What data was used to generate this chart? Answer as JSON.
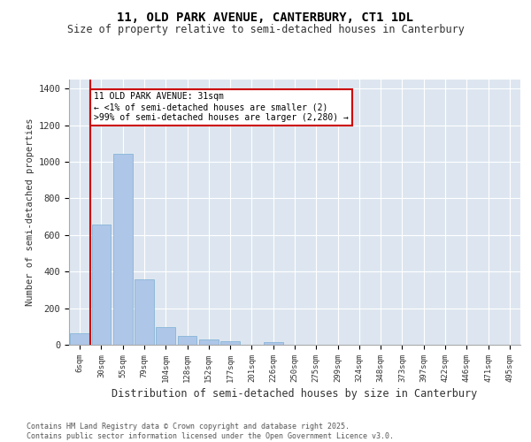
{
  "title": "11, OLD PARK AVENUE, CANTERBURY, CT1 1DL",
  "subtitle": "Size of property relative to semi-detached houses in Canterbury",
  "xlabel": "Distribution of semi-detached houses by size in Canterbury",
  "ylabel": "Number of semi-detached properties",
  "bar_color": "#aec6e8",
  "bar_edge_color": "#7aafd4",
  "background_color": "#dde6f0",
  "grid_color": "#ffffff",
  "vline_color": "#cc0000",
  "annotation_text": "11 OLD PARK AVENUE: 31sqm\n← <1% of semi-detached houses are smaller (2)\n>99% of semi-detached houses are larger (2,280) →",
  "annotation_box_color": "#ffffff",
  "annotation_box_edge": "#cc0000",
  "footer": "Contains HM Land Registry data © Crown copyright and database right 2025.\nContains public sector information licensed under the Open Government Licence v3.0.",
  "categories": [
    "6sqm",
    "30sqm",
    "55sqm",
    "79sqm",
    "104sqm",
    "128sqm",
    "152sqm",
    "177sqm",
    "201sqm",
    "226sqm",
    "250sqm",
    "275sqm",
    "299sqm",
    "324sqm",
    "348sqm",
    "373sqm",
    "397sqm",
    "422sqm",
    "446sqm",
    "471sqm",
    "495sqm"
  ],
  "values": [
    65,
    655,
    1045,
    360,
    95,
    50,
    30,
    20,
    0,
    15,
    0,
    0,
    0,
    0,
    0,
    0,
    0,
    0,
    0,
    0,
    0
  ],
  "ylim": [
    0,
    1450
  ],
  "yticks": [
    0,
    200,
    400,
    600,
    800,
    1000,
    1200,
    1400
  ]
}
